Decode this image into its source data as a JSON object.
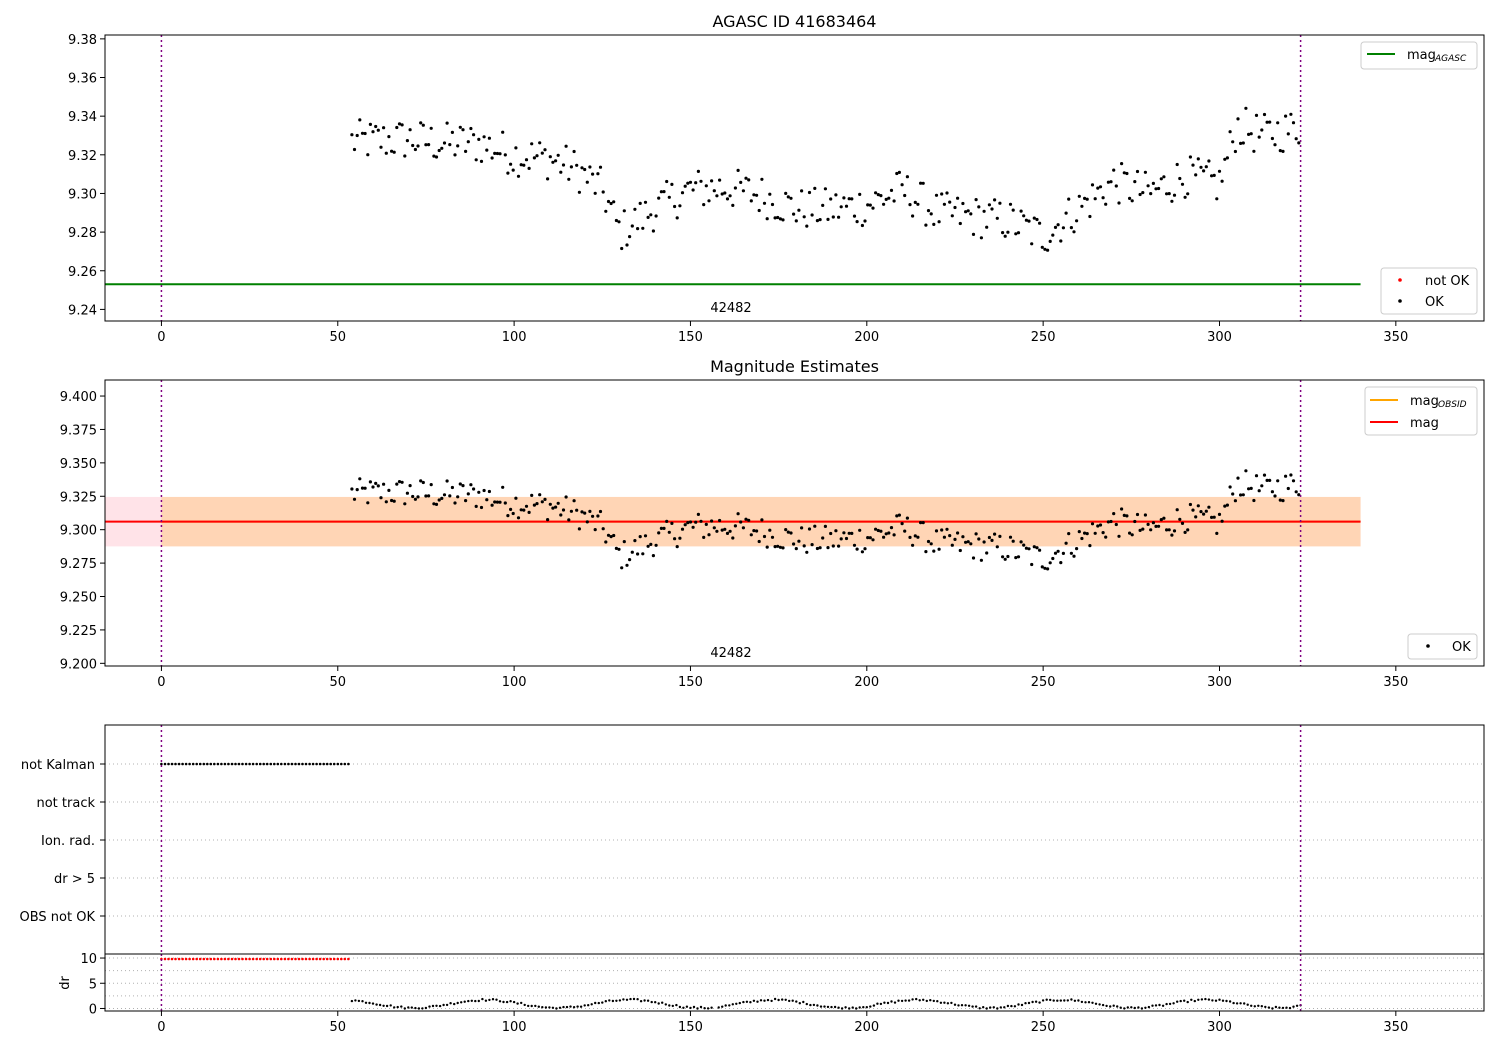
{
  "chart_data": [
    {
      "type": "scatter",
      "title": "AGASC ID 41683464",
      "xlim": [
        -16,
        375
      ],
      "ylim": [
        9.234,
        9.382
      ],
      "xticks": [
        0,
        50,
        100,
        150,
        200,
        250,
        300,
        350
      ],
      "yticks": [
        9.24,
        9.26,
        9.28,
        9.3,
        9.32,
        9.34,
        9.36,
        9.38
      ],
      "ytick_labels": [
        "9.24",
        "9.26",
        "9.28",
        "9.30",
        "9.32",
        "9.34",
        "9.36",
        "9.38"
      ],
      "obs_boundaries": [
        0,
        323
      ],
      "obsid_annotation": {
        "text": "42482",
        "x": 161.5
      },
      "mag_agasc": {
        "value": 9.253,
        "x_range": [
          -16,
          340
        ]
      },
      "ok_points": {
        "x_start": 54,
        "x_end": 323,
        "y_smoothed": [
          [
            54,
            9.327
          ],
          [
            70,
            9.328
          ],
          [
            80,
            9.326
          ],
          [
            90,
            9.326
          ],
          [
            100,
            9.32
          ],
          [
            110,
            9.318
          ],
          [
            118,
            9.312
          ],
          [
            125,
            9.302
          ],
          [
            130,
            9.28
          ],
          [
            140,
            9.292
          ],
          [
            150,
            9.302
          ],
          [
            160,
            9.303
          ],
          [
            170,
            9.299
          ],
          [
            180,
            9.292
          ],
          [
            190,
            9.292
          ],
          [
            200,
            9.294
          ],
          [
            210,
            9.302
          ],
          [
            220,
            9.29
          ],
          [
            230,
            9.288
          ],
          [
            240,
            9.286
          ],
          [
            250,
            9.278
          ],
          [
            260,
            9.292
          ],
          [
            270,
            9.306
          ],
          [
            280,
            9.3
          ],
          [
            290,
            9.309
          ],
          [
            300,
            9.305
          ],
          [
            305,
            9.335
          ],
          [
            312,
            9.33
          ],
          [
            323,
            9.334
          ]
        ]
      },
      "legends": [
        {
          "position": "upper-right",
          "items": [
            {
              "label": "mag",
              "subscript": "AGASC",
              "color": "#008000",
              "kind": "line"
            }
          ]
        },
        {
          "position": "lower-right",
          "items": [
            {
              "label": "not OK",
              "color": "#ff0000",
              "kind": "point"
            },
            {
              "label": "OK",
              "color": "#000000",
              "kind": "point"
            }
          ]
        }
      ]
    },
    {
      "type": "scatter",
      "title": "Magnitude Estimates",
      "xlim": [
        -16,
        375
      ],
      "ylim": [
        9.198,
        9.412
      ],
      "xticks": [
        0,
        50,
        100,
        150,
        200,
        250,
        300,
        350
      ],
      "yticks": [
        9.2,
        9.225,
        9.25,
        9.275,
        9.3,
        9.325,
        9.35,
        9.375,
        9.4
      ],
      "ytick_labels": [
        "9.200",
        "9.225",
        "9.250",
        "9.275",
        "9.300",
        "9.325",
        "9.350",
        "9.375",
        "9.400"
      ],
      "obs_boundaries": [
        0,
        323
      ],
      "obsid_annotation": {
        "text": "42482",
        "x": 161.5
      },
      "mag": {
        "value": 9.306,
        "band": [
          9.2875,
          9.3245
        ],
        "x_range": [
          -16,
          340
        ]
      },
      "mag_obsid": {
        "value": 9.306,
        "band": [
          9.2875,
          9.3245
        ],
        "x_range": [
          0,
          340
        ]
      },
      "legends": [
        {
          "position": "upper-right",
          "items": [
            {
              "label": "mag",
              "subscript": "OBSID",
              "color": "#ffa500",
              "kind": "line"
            },
            {
              "label": "mag",
              "subscript": "",
              "color": "#ff0000",
              "kind": "line"
            }
          ]
        },
        {
          "position": "lower-right",
          "items": [
            {
              "label": "OK",
              "color": "#000000",
              "kind": "point"
            }
          ]
        }
      ]
    },
    {
      "type": "scatter",
      "title": "",
      "xlim": [
        -16,
        375
      ],
      "categories": [
        "not Kalman",
        "not track",
        "Ion. rad.",
        "dr > 5",
        "OBS not OK"
      ],
      "flags": {
        "not Kalman": [
          0,
          53
        ]
      },
      "obs_boundaries": [
        0,
        323
      ]
    },
    {
      "type": "scatter",
      "title": "",
      "ylabel": "dr",
      "xlim": [
        -16,
        375
      ],
      "ylim": [
        -0.5,
        10.8
      ],
      "yticks": [
        0,
        5,
        10
      ],
      "xticks": [
        0,
        50,
        100,
        150,
        200,
        250,
        300,
        350
      ],
      "dr_not_ok": {
        "x_range": [
          0,
          53
        ],
        "value": 9.8
      },
      "obs_boundaries": [
        0,
        323
      ]
    }
  ]
}
